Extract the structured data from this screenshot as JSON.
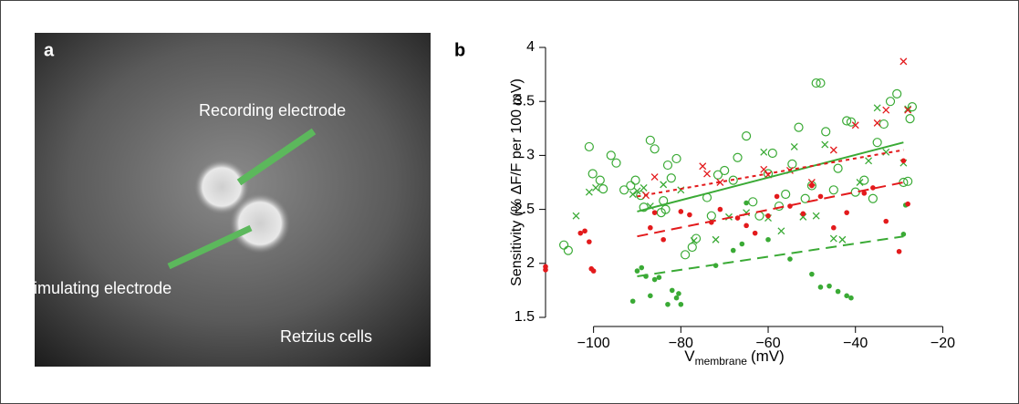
{
  "panel_a": {
    "label": "a",
    "recording": "Recording electrode",
    "stimulating": "Stimulating electrode",
    "cells": "Retzius cells"
  },
  "chart_data": {
    "type": "scatter",
    "panel_label": "b",
    "y_label": "Sensitivity (% ΔF/F per 100 mV)",
    "x_label": {
      "main": "V",
      "sub": "membrane",
      "unit": "(mV)"
    },
    "xlim": [
      -111,
      -18
    ],
    "ylim": [
      1.5,
      4
    ],
    "xticks": [
      {
        "value": -100,
        "label": "−100"
      },
      {
        "value": -80,
        "label": "−80"
      },
      {
        "value": -60,
        "label": "−60"
      },
      {
        "value": -40,
        "label": "−40"
      },
      {
        "value": -20,
        "label": "−20"
      }
    ],
    "yticks": [
      1.5,
      2,
      2.5,
      3,
      3.5,
      4
    ],
    "series": [
      {
        "marker": "open-circle",
        "color": "#3aaa35",
        "x": [
          -106.8,
          -105.8,
          -101,
          -100.2,
          -98.5,
          -97.8,
          -96,
          -94.8,
          -93,
          -91.5,
          -90.4,
          -89.2,
          -88.5,
          -87,
          -86,
          -84.5,
          -84,
          -83.5,
          -83,
          -82.2,
          -81,
          -79,
          -77.4,
          -76.5,
          -74,
          -73,
          -71.5,
          -70,
          -68,
          -67,
          -65,
          -63.5,
          -62,
          -60,
          -59,
          -57.5,
          -56,
          -54.5,
          -53,
          -51.5,
          -50,
          -49,
          -48,
          -46.8,
          -45,
          -44,
          -42,
          -41,
          -40,
          -38,
          -36,
          -35,
          -33.5,
          -32,
          -30.5,
          -29,
          -28,
          -27.5,
          -27
        ],
        "values": [
          2.17,
          2.12,
          3.08,
          2.83,
          2.77,
          2.69,
          3.0,
          2.93,
          2.68,
          2.72,
          2.77,
          2.63,
          2.52,
          3.14,
          3.06,
          2.47,
          2.58,
          2.5,
          2.91,
          2.79,
          2.97,
          2.08,
          2.15,
          2.23,
          2.61,
          2.44,
          2.82,
          2.86,
          2.77,
          2.98,
          3.18,
          2.57,
          2.44,
          2.83,
          3.02,
          2.53,
          2.64,
          2.92,
          3.26,
          2.6,
          2.72,
          3.67,
          3.67,
          3.22,
          2.68,
          2.88,
          3.32,
          3.31,
          2.66,
          2.77,
          2.6,
          3.12,
          3.29,
          3.5,
          3.57,
          2.75,
          2.76,
          3.34,
          3.45
        ]
      },
      {
        "marker": "cross",
        "color": "#3aaa35",
        "x": [
          -104,
          -101,
          -99.5,
          -91,
          -90,
          -88.5,
          -87,
          -84,
          -80,
          -77,
          -72,
          -69,
          -65,
          -61,
          -60,
          -57,
          -54,
          -52,
          -49,
          -47,
          -45,
          -43,
          -39,
          -37,
          -35,
          -33,
          -29,
          -28
        ],
        "values": [
          2.44,
          2.66,
          2.7,
          2.64,
          2.67,
          2.7,
          2.53,
          2.73,
          2.68,
          2.21,
          2.22,
          2.43,
          2.47,
          3.03,
          2.42,
          2.3,
          3.08,
          2.43,
          2.44,
          3.1,
          2.23,
          2.22,
          2.75,
          2.95,
          3.44,
          3.03,
          2.93,
          3.43
        ]
      },
      {
        "marker": "dot",
        "color": "#3aaa35",
        "x": [
          -91,
          -90,
          -89,
          -88,
          -87,
          -86,
          -85,
          -83,
          -82,
          -81,
          -80.5,
          -80,
          -72,
          -68,
          -66,
          -65,
          -60,
          -55,
          -50,
          -48,
          -46,
          -44,
          -42,
          -41,
          -29,
          -28.5
        ],
        "values": [
          1.65,
          1.93,
          1.96,
          1.88,
          1.7,
          1.85,
          1.87,
          1.62,
          1.75,
          1.68,
          1.72,
          1.62,
          1.98,
          2.12,
          2.18,
          2.56,
          2.22,
          2.04,
          1.9,
          1.78,
          1.79,
          1.74,
          1.7,
          1.68,
          2.27,
          2.54
        ]
      },
      {
        "marker": "dot",
        "color": "#e31a1c",
        "x": [
          -111,
          -111,
          -103,
          -102,
          -101,
          -100.5,
          -100,
          -87,
          -86,
          -84,
          -80,
          -78,
          -73,
          -71,
          -67,
          -65,
          -63,
          -60,
          -58,
          -55,
          -52,
          -50,
          -48,
          -45,
          -42,
          -38,
          -36,
          -33,
          -30,
          -29,
          -28
        ],
        "values": [
          1.97,
          1.94,
          2.28,
          2.3,
          2.2,
          1.95,
          1.93,
          2.33,
          2.47,
          2.22,
          2.48,
          2.45,
          2.38,
          2.5,
          2.42,
          2.35,
          2.28,
          2.44,
          2.62,
          2.53,
          2.46,
          2.72,
          2.62,
          2.33,
          2.47,
          2.65,
          2.7,
          2.39,
          2.11,
          2.95,
          2.55
        ]
      },
      {
        "marker": "cross",
        "color": "#e31a1c",
        "x": [
          -88,
          -86,
          -75,
          -74,
          -71,
          -61,
          -60,
          -55,
          -50,
          -45,
          -40,
          -35,
          -33,
          -29,
          -28
        ],
        "values": [
          2.63,
          2.8,
          2.9,
          2.83,
          2.75,
          2.87,
          2.82,
          2.86,
          2.75,
          3.05,
          3.28,
          3.3,
          3.42,
          3.87,
          3.42
        ]
      }
    ],
    "fits": [
      {
        "color": "#3aaa35",
        "dash": "solid",
        "x": [
          -90,
          -29
        ],
        "values": [
          2.48,
          3.12
        ]
      },
      {
        "color": "#3aaa35",
        "dash": "dashed",
        "x": [
          -90,
          -29
        ],
        "values": [
          1.88,
          2.25
        ]
      },
      {
        "color": "#e31a1c",
        "dash": "dashed",
        "x": [
          -90,
          -29
        ],
        "values": [
          2.25,
          2.75
        ]
      },
      {
        "color": "#e31a1c",
        "dash": "dotted",
        "x": [
          -90,
          -29
        ],
        "values": [
          2.62,
          3.05
        ]
      }
    ]
  }
}
